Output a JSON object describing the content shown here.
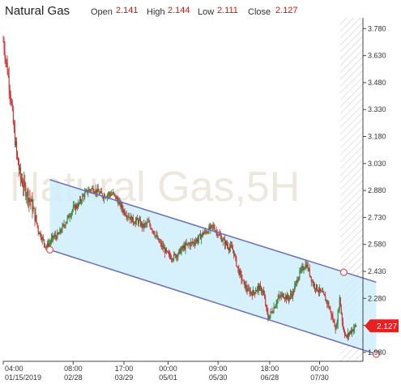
{
  "header": {
    "title": "Natural Gas",
    "open_label": "Open",
    "open_value": "2.141",
    "high_label": "High",
    "high_value": "2.144",
    "low_label": "Low",
    "low_value": "2.111",
    "close_label": "Close",
    "close_value": "2.127"
  },
  "watermark": "Natural Gas,5H",
  "price_tag": "2.127",
  "colors": {
    "up": "#2e7d32",
    "down": "#c62828",
    "channel_fill": "#cfeefc",
    "channel_line": "#6a6fb5",
    "marker": "#e05a5a",
    "price_tag": "#e82020",
    "value_red": "#e01010"
  },
  "chart_data": {
    "type": "candlestick",
    "title": "Natural Gas",
    "ylim": [
      1.93,
      3.84
    ],
    "y_ticks": [
      "3.780",
      "3.630",
      "3.480",
      "3.330",
      "3.180",
      "3.030",
      "2.880",
      "2.730",
      "2.580",
      "2.430",
      "2.280",
      "2.130",
      "1.980"
    ],
    "x_ticks": [
      {
        "time": "04:00",
        "date": "01/15/2019"
      },
      {
        "time": "08:00",
        "date": "02/28"
      },
      {
        "time": "17:00",
        "date": "03/29"
      },
      {
        "time": "00:00",
        "date": "05/01"
      },
      {
        "time": "09:00",
        "date": "05/30"
      },
      {
        "time": "18:00",
        "date": "06/28"
      },
      {
        "time": "00:00",
        "date": "07/30"
      }
    ],
    "series_path": [
      [
        0,
        3.71
      ],
      [
        5,
        3.55
      ],
      [
        9,
        3.4
      ],
      [
        13,
        3.2
      ],
      [
        17,
        3.05
      ],
      [
        21,
        2.95
      ],
      [
        25,
        2.9
      ],
      [
        29,
        2.86
      ],
      [
        33,
        2.82
      ],
      [
        38,
        2.74
      ],
      [
        42,
        2.66
      ],
      [
        46,
        2.62
      ],
      [
        50,
        2.58
      ],
      [
        52,
        2.57
      ],
      [
        55,
        2.58
      ],
      [
        60,
        2.62
      ],
      [
        66,
        2.63
      ],
      [
        72,
        2.68
      ],
      [
        78,
        2.73
      ],
      [
        84,
        2.78
      ],
      [
        90,
        2.8
      ],
      [
        96,
        2.85
      ],
      [
        102,
        2.88
      ],
      [
        108,
        2.89
      ],
      [
        114,
        2.87
      ],
      [
        120,
        2.85
      ],
      [
        126,
        2.86
      ],
      [
        132,
        2.86
      ],
      [
        138,
        2.82
      ],
      [
        144,
        2.77
      ],
      [
        150,
        2.74
      ],
      [
        156,
        2.71
      ],
      [
        162,
        2.71
      ],
      [
        168,
        2.68
      ],
      [
        174,
        2.7
      ],
      [
        180,
        2.66
      ],
      [
        186,
        2.6
      ],
      [
        192,
        2.56
      ],
      [
        198,
        2.52
      ],
      [
        204,
        2.51
      ],
      [
        210,
        2.53
      ],
      [
        216,
        2.56
      ],
      [
        222,
        2.58
      ],
      [
        228,
        2.59
      ],
      [
        234,
        2.61
      ],
      [
        240,
        2.64
      ],
      [
        246,
        2.66
      ],
      [
        252,
        2.68
      ],
      [
        258,
        2.64
      ],
      [
        264,
        2.6
      ],
      [
        270,
        2.57
      ],
      [
        276,
        2.55
      ],
      [
        282,
        2.44
      ],
      [
        288,
        2.37
      ],
      [
        294,
        2.32
      ],
      [
        300,
        2.31
      ],
      [
        306,
        2.34
      ],
      [
        312,
        2.32
      ],
      [
        318,
        2.17
      ],
      [
        324,
        2.22
      ],
      [
        330,
        2.28
      ],
      [
        336,
        2.3
      ],
      [
        342,
        2.28
      ],
      [
        348,
        2.31
      ],
      [
        354,
        2.4
      ],
      [
        360,
        2.45
      ],
      [
        364,
        2.47
      ],
      [
        368,
        2.42
      ],
      [
        372,
        2.36
      ],
      [
        378,
        2.33
      ],
      [
        384,
        2.3
      ],
      [
        390,
        2.25
      ],
      [
        396,
        2.16
      ],
      [
        400,
        2.11
      ],
      [
        404,
        2.28
      ],
      [
        408,
        2.12
      ],
      [
        412,
        2.06
      ],
      [
        416,
        2.09
      ],
      [
        420,
        2.11
      ],
      [
        424,
        2.13
      ]
    ],
    "last_close": 2.127,
    "channel": {
      "upper": [
        [
          56,
          2.94
        ],
        [
          448,
          2.37
        ]
      ],
      "lower": [
        [
          56,
          2.55
        ],
        [
          448,
          1.97
        ]
      ],
      "markers": [
        [
          56,
          2.55
        ],
        [
          409,
          2.425
        ],
        [
          448,
          1.97
        ]
      ]
    },
    "grid": false,
    "legend": "none"
  }
}
